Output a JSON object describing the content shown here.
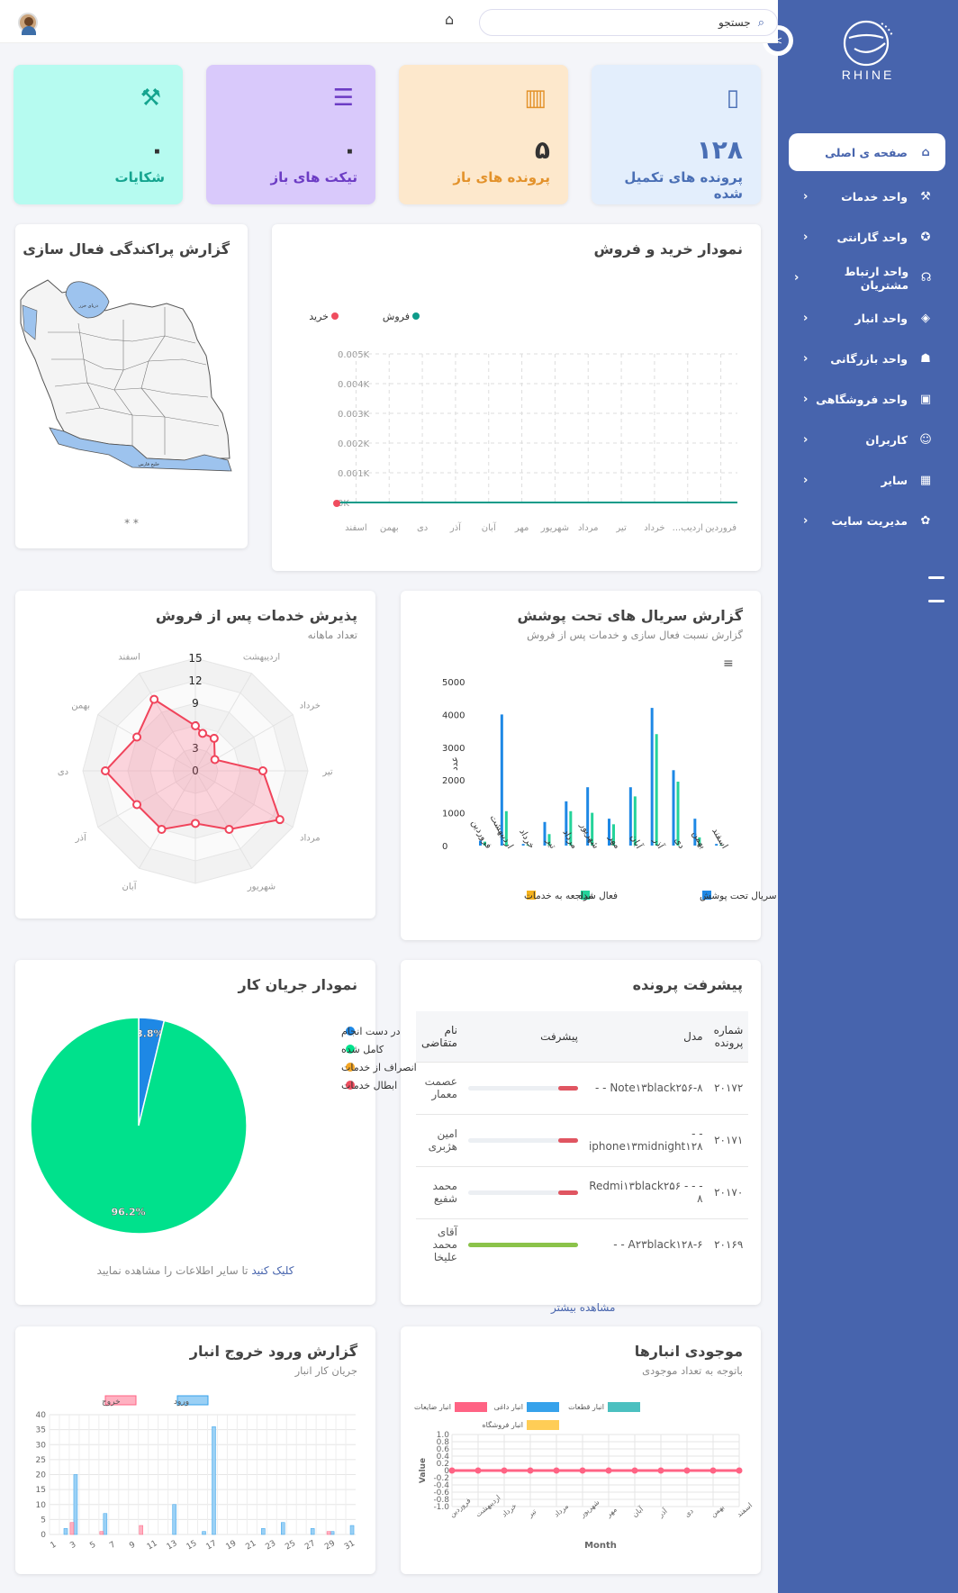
{
  "sidebar": {
    "logo_text": "RHINE",
    "items": [
      {
        "label": "صفحه ی اصلی",
        "icon": "home-icon"
      },
      {
        "label": "واحد خدمات",
        "icon": "tools-icon"
      },
      {
        "label": "واحد گارانتی",
        "icon": "award-icon"
      },
      {
        "label": "واحد ارتباط مشتریان",
        "icon": "headset-icon"
      },
      {
        "label": "واحد انبار",
        "icon": "layers-icon"
      },
      {
        "label": "واحد بازرگانی",
        "icon": "hand-box-icon"
      },
      {
        "label": "واحد فروشگاهی",
        "icon": "shopping-bag-icon"
      },
      {
        "label": "کاربران",
        "icon": "user-icon"
      },
      {
        "label": "سایر",
        "icon": "grid-icon"
      },
      {
        "label": "مدیریت سایت",
        "icon": "users-cog-icon"
      }
    ]
  },
  "topbar": {
    "search_placeholder": "جستجو"
  },
  "stats": [
    {
      "value": "۱۲۸",
      "label": "پرونده های تکمیل شده",
      "bg": "#e3eefc",
      "color": "#4a6fb5"
    },
    {
      "value": "۵",
      "label": "پرونده های باز",
      "bg": "#fde8cc",
      "color": "#e3922b"
    },
    {
      "value": "۰",
      "label": "تیکت های باز",
      "bg": "#d9c9fb",
      "color": "#6c3cc4"
    },
    {
      "value": "۰",
      "label": "شکایات",
      "bg": "#b6fbf0",
      "color": "#15a48f"
    }
  ],
  "sales_chart": {
    "title": "نمودار خرید و فروش",
    "chart_data": {
      "type": "line",
      "categories": [
        "فروردین",
        "اردیب...",
        "خرداد",
        "تیر",
        "مرداد",
        "شهریور",
        "مهر",
        "آبان",
        "آذر",
        "دی",
        "بهمن",
        "اسفند"
      ],
      "series": [
        {
          "name": "فروش",
          "values": [
            0,
            0,
            0,
            0,
            0,
            0,
            0,
            0,
            0,
            0,
            0,
            0
          ],
          "color": "#0e9b8a"
        },
        {
          "name": "خرید",
          "values": [
            0,
            0,
            0,
            0,
            0,
            0,
            0,
            0,
            0,
            0,
            0,
            0
          ],
          "color": "#ef4d5f"
        }
      ],
      "yticks": [
        "0K",
        "0.001K",
        "0.002K",
        "0.003K",
        "0.004K",
        "0.005K"
      ],
      "ylim": [
        0,
        0.005
      ]
    }
  },
  "map_card": {
    "title": "گزارش پراکندگی فعال سازی",
    "footer": "* *",
    "labels": [
      "دریای خزر",
      "خلیج فارس"
    ]
  },
  "serial_chart": {
    "title": "گزارش سریال های تحت پوشش",
    "subtitle": "گزارش نسبت فعال سازی و خدمات پس از فروش",
    "ylabel": "عدد",
    "chart_data": {
      "type": "bar",
      "categories": [
        "فروردین",
        "اردیبهشت",
        "خرداد",
        "تیر",
        "مرداد",
        "شهریور",
        "مهر",
        "آبان",
        "آذر",
        "دی",
        "بهمن",
        "اسفند"
      ],
      "yticks": [
        0,
        1000,
        2000,
        3000,
        4000,
        5000
      ],
      "ylim": [
        0,
        5000
      ],
      "series": [
        {
          "name": "سریال تحت پوشش",
          "color": "#1e88e5",
          "values": [
            150,
            4000,
            50,
            720,
            1350,
            1780,
            820,
            1780,
            4200,
            2300,
            820,
            50
          ]
        },
        {
          "name": "فعال شده",
          "color": "#24d39a",
          "values": [
            120,
            1050,
            30,
            350,
            1050,
            1000,
            650,
            1500,
            3400,
            1950,
            250,
            30
          ]
        },
        {
          "name": "مراجعه به خدمات",
          "color": "#f5b21c",
          "values": [
            0,
            0,
            0,
            0,
            0,
            0,
            0,
            0,
            0,
            0,
            0,
            0
          ]
        }
      ]
    }
  },
  "radar_chart": {
    "title": "پذیرش خدمات پس از فروش",
    "subtitle": "تعداد ماهانه",
    "chart_data": {
      "type": "radar",
      "categories": [
        "اردیبهشت",
        "خرداد",
        "تیر",
        "مرداد",
        "شهریور",
        "آبان",
        "آذر",
        "دی",
        "بهمن",
        "اسفند"
      ],
      "rticks": [
        0,
        3,
        6,
        9,
        12,
        15
      ],
      "values": [
        5,
        3,
        9,
        13,
        9,
        9,
        9,
        12,
        9,
        11
      ],
      "extra_points": [
        [
          4,
          -15
        ],
        [
          3,
          -8
        ],
        [
          6,
          0
        ]
      ]
    }
  },
  "progress_card": {
    "title": "پیشرفت پرونده",
    "headers": [
      "شماره پرونده",
      "مدل",
      "پیشرفت",
      "نام متقاضی"
    ],
    "rows": [
      {
        "id": "۲۰۱۷۲",
        "model": "Note۱۳black۲۵۶-۸ - -",
        "progress": 0.18,
        "color": "#e05561",
        "name": "عصمت معمار"
      },
      {
        "id": "۲۰۱۷۱",
        "model": "- - iphone۱۳midnight۱۲۸",
        "progress": 0.18,
        "color": "#e05561",
        "name": "امین هژبری"
      },
      {
        "id": "۲۰۱۷۰",
        "model": "- - - Redmi۱۳black۲۵۶ ۸",
        "progress": 0.18,
        "color": "#e05561",
        "name": "محمد شفیع"
      },
      {
        "id": "۲۰۱۶۹",
        "model": "A۲۳black۱۲۸-۶ - -",
        "progress": 1.0,
        "color": "#8bc34a",
        "name": "آقای محمد علیخا"
      }
    ],
    "more_label": "مشاهده بیشتر"
  },
  "workflow_chart": {
    "title": "نمودار جریان کار",
    "click_label": "کلیک کنید",
    "footer_rest": "تا سایر اطلاعات را مشاهده نمایید",
    "chart_data": {
      "type": "pie",
      "labels": [
        "در دست انجام",
        "کامل شده",
        "انصراف از خدمات",
        "ابطال خدمات"
      ],
      "values": [
        3.8,
        96.2,
        0,
        0
      ],
      "value_labels": [
        "3.8%",
        "96.2%",
        "",
        ""
      ],
      "colors": [
        "#1e88e5",
        "#00e18c",
        "#f5a623",
        "#ef4d5f"
      ]
    }
  },
  "stock_chart": {
    "title": "موجودی انبارها",
    "subtitle": "باتوجه به تعداد موجودی",
    "xlabel": "Month",
    "ylabel": "Value",
    "chart_data": {
      "type": "line",
      "legend": [
        {
          "name": "انبار قطعات",
          "color": "#4bc0c0"
        },
        {
          "name": "انبار داغی",
          "color": "#36a2eb"
        },
        {
          "name": "انبار ضایعات",
          "color": "#ff6384"
        },
        {
          "name": "انبار فروشگاه",
          "color": "#ffcd56"
        }
      ],
      "categories": [
        "فروردین",
        "اردیبهشت",
        "خرداد",
        "تیر",
        "مرداد",
        "شهریور",
        "مهر",
        "آبان",
        "آذر",
        "دی",
        "بهمن",
        "اسفند"
      ],
      "values": [
        0,
        0,
        0,
        0,
        0,
        0,
        0,
        0,
        0,
        0,
        0,
        0
      ],
      "yticks": [
        "-1.0",
        "-0.8",
        "-0.6",
        "-0.4",
        "-0.2",
        "0",
        "0.2",
        "0.4",
        "0.6",
        "0.8",
        "1.0"
      ]
    }
  },
  "warehouse_chart": {
    "title": "گزارش ورود خروج انبار",
    "subtitle": "جریان کار انبار",
    "chart_data": {
      "type": "bar",
      "x": [
        1,
        2,
        3,
        4,
        5,
        6,
        7,
        8,
        9,
        10,
        11,
        12,
        13,
        14,
        15,
        16,
        17,
        18,
        19,
        20,
        21,
        22,
        23,
        24,
        25,
        26,
        27,
        28,
        29,
        30,
        31
      ],
      "xticks": [
        1,
        3,
        5,
        7,
        9,
        11,
        13,
        15,
        17,
        19,
        21,
        23,
        25,
        27,
        29,
        31
      ],
      "yticks": [
        0,
        5,
        10,
        15,
        20,
        25,
        30,
        35,
        40
      ],
      "ylim": [
        0,
        40
      ],
      "series": [
        {
          "name": "ورود",
          "color": "#9ad0f5",
          "values": [
            0,
            2,
            20,
            0,
            0,
            7,
            0,
            0,
            0,
            0,
            0,
            0,
            10,
            0,
            0,
            1,
            36,
            0,
            0,
            0,
            0,
            2,
            0,
            4,
            0,
            0,
            2,
            0,
            1,
            0,
            3
          ]
        },
        {
          "name": "خروج",
          "color": "#ffb1c1",
          "values": [
            0,
            0,
            4,
            0,
            0,
            1,
            0,
            0,
            0,
            3,
            0,
            0,
            0,
            0,
            0,
            0,
            0,
            0,
            0,
            0,
            0,
            0,
            0,
            0,
            0,
            0,
            0,
            0,
            1,
            0,
            0
          ]
        }
      ]
    }
  }
}
